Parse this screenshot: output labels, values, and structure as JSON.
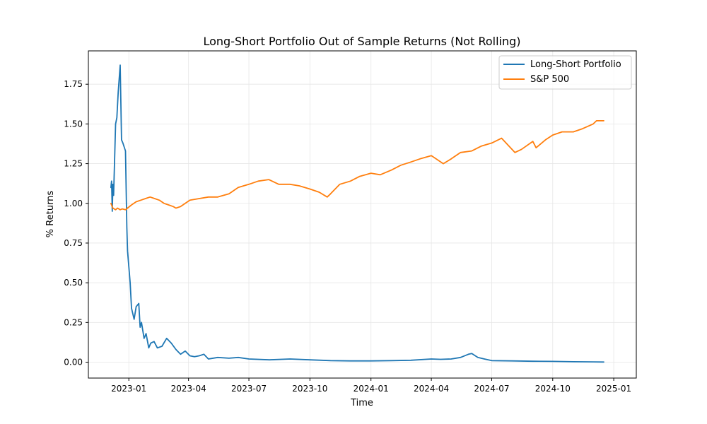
{
  "chart_data": {
    "type": "line",
    "title": "Long-Short Portfolio Out of Sample Returns (Not Rolling)",
    "xlabel": "Time",
    "ylabel": "% Returns",
    "xlim": [
      "2022-11-01",
      "2025-02-04"
    ],
    "ylim": [
      -0.1,
      1.96
    ],
    "x_ticks": [
      "2023-01",
      "2023-04",
      "2023-07",
      "2023-10",
      "2024-01",
      "2024-04",
      "2024-07",
      "2024-10",
      "2025-01"
    ],
    "y_ticks": [
      "0.00",
      "0.25",
      "0.50",
      "0.75",
      "1.00",
      "1.25",
      "1.50",
      "1.75"
    ],
    "grid": true,
    "legend_position": "upper right",
    "series": [
      {
        "name": "Long-Short Portfolio",
        "color": "#1f77b4",
        "x": [
          "2022-12-05",
          "2022-12-06",
          "2022-12-07",
          "2022-12-08",
          "2022-12-09",
          "2022-12-12",
          "2022-12-14",
          "2022-12-16",
          "2022-12-19",
          "2022-12-21",
          "2022-12-23",
          "2022-12-27",
          "2022-12-29",
          "2022-12-30",
          "2023-01-03",
          "2023-01-05",
          "2023-01-09",
          "2023-01-12",
          "2023-01-16",
          "2023-01-18",
          "2023-01-20",
          "2023-01-24",
          "2023-01-27",
          "2023-01-31",
          "2023-02-03",
          "2023-02-08",
          "2023-02-13",
          "2023-02-20",
          "2023-02-27",
          "2023-03-06",
          "2023-03-13",
          "2023-03-20",
          "2023-03-27",
          "2023-04-03",
          "2023-04-10",
          "2023-04-17",
          "2023-04-24",
          "2023-05-01",
          "2023-05-15",
          "2023-06-01",
          "2023-06-15",
          "2023-07-01",
          "2023-08-01",
          "2023-09-01",
          "2023-10-01",
          "2023-11-01",
          "2023-12-01",
          "2024-01-01",
          "2024-02-01",
          "2024-03-01",
          "2024-04-01",
          "2024-04-15",
          "2024-05-01",
          "2024-05-15",
          "2024-05-27",
          "2024-06-01",
          "2024-06-10",
          "2024-06-20",
          "2024-07-01",
          "2024-08-01",
          "2024-09-01",
          "2024-10-01",
          "2024-11-01",
          "2024-12-01",
          "2024-12-17"
        ],
        "values": [
          1.1,
          1.14,
          0.95,
          1.12,
          1.05,
          1.5,
          1.54,
          1.7,
          1.87,
          1.4,
          1.38,
          1.33,
          0.85,
          0.7,
          0.5,
          0.34,
          0.27,
          0.35,
          0.37,
          0.22,
          0.25,
          0.15,
          0.18,
          0.09,
          0.12,
          0.13,
          0.09,
          0.1,
          0.15,
          0.12,
          0.08,
          0.05,
          0.07,
          0.04,
          0.035,
          0.04,
          0.05,
          0.02,
          0.03,
          0.025,
          0.03,
          0.02,
          0.015,
          0.02,
          0.015,
          0.01,
          0.008,
          0.008,
          0.01,
          0.012,
          0.02,
          0.018,
          0.02,
          0.03,
          0.05,
          0.055,
          0.03,
          0.02,
          0.01,
          0.008,
          0.006,
          0.005,
          0.003,
          0.002,
          0.001
        ]
      },
      {
        "name": "S&P 500",
        "color": "#ff7f0e",
        "x": [
          "2022-12-05",
          "2022-12-08",
          "2022-12-12",
          "2022-12-15",
          "2022-12-19",
          "2022-12-22",
          "2022-12-27",
          "2022-12-30",
          "2023-01-05",
          "2023-01-12",
          "2023-01-19",
          "2023-01-26",
          "2023-02-02",
          "2023-02-09",
          "2023-02-16",
          "2023-02-23",
          "2023-03-02",
          "2023-03-09",
          "2023-03-13",
          "2023-03-20",
          "2023-03-27",
          "2023-04-03",
          "2023-04-17",
          "2023-05-01",
          "2023-05-15",
          "2023-06-01",
          "2023-06-15",
          "2023-07-01",
          "2023-07-15",
          "2023-07-31",
          "2023-08-15",
          "2023-09-01",
          "2023-09-15",
          "2023-10-01",
          "2023-10-15",
          "2023-10-27",
          "2023-11-01",
          "2023-11-15",
          "2023-12-01",
          "2023-12-15",
          "2024-01-01",
          "2024-01-15",
          "2024-02-01",
          "2024-02-15",
          "2024-03-01",
          "2024-03-15",
          "2024-04-01",
          "2024-04-19",
          "2024-05-01",
          "2024-05-15",
          "2024-06-01",
          "2024-06-15",
          "2024-07-01",
          "2024-07-16",
          "2024-08-05",
          "2024-08-15",
          "2024-09-01",
          "2024-09-06",
          "2024-09-20",
          "2024-10-01",
          "2024-10-15",
          "2024-11-01",
          "2024-11-15",
          "2024-12-01",
          "2024-12-06",
          "2024-12-17"
        ],
        "values": [
          1.0,
          0.97,
          0.96,
          0.97,
          0.96,
          0.965,
          0.96,
          0.97,
          0.99,
          1.01,
          1.02,
          1.03,
          1.04,
          1.03,
          1.02,
          1.0,
          0.99,
          0.98,
          0.97,
          0.98,
          1.0,
          1.02,
          1.03,
          1.04,
          1.04,
          1.06,
          1.1,
          1.12,
          1.14,
          1.15,
          1.12,
          1.12,
          1.11,
          1.09,
          1.07,
          1.04,
          1.06,
          1.12,
          1.14,
          1.17,
          1.19,
          1.18,
          1.21,
          1.24,
          1.26,
          1.28,
          1.3,
          1.25,
          1.28,
          1.32,
          1.33,
          1.36,
          1.38,
          1.41,
          1.32,
          1.34,
          1.39,
          1.35,
          1.4,
          1.43,
          1.45,
          1.45,
          1.47,
          1.5,
          1.52,
          1.52
        ]
      }
    ]
  }
}
